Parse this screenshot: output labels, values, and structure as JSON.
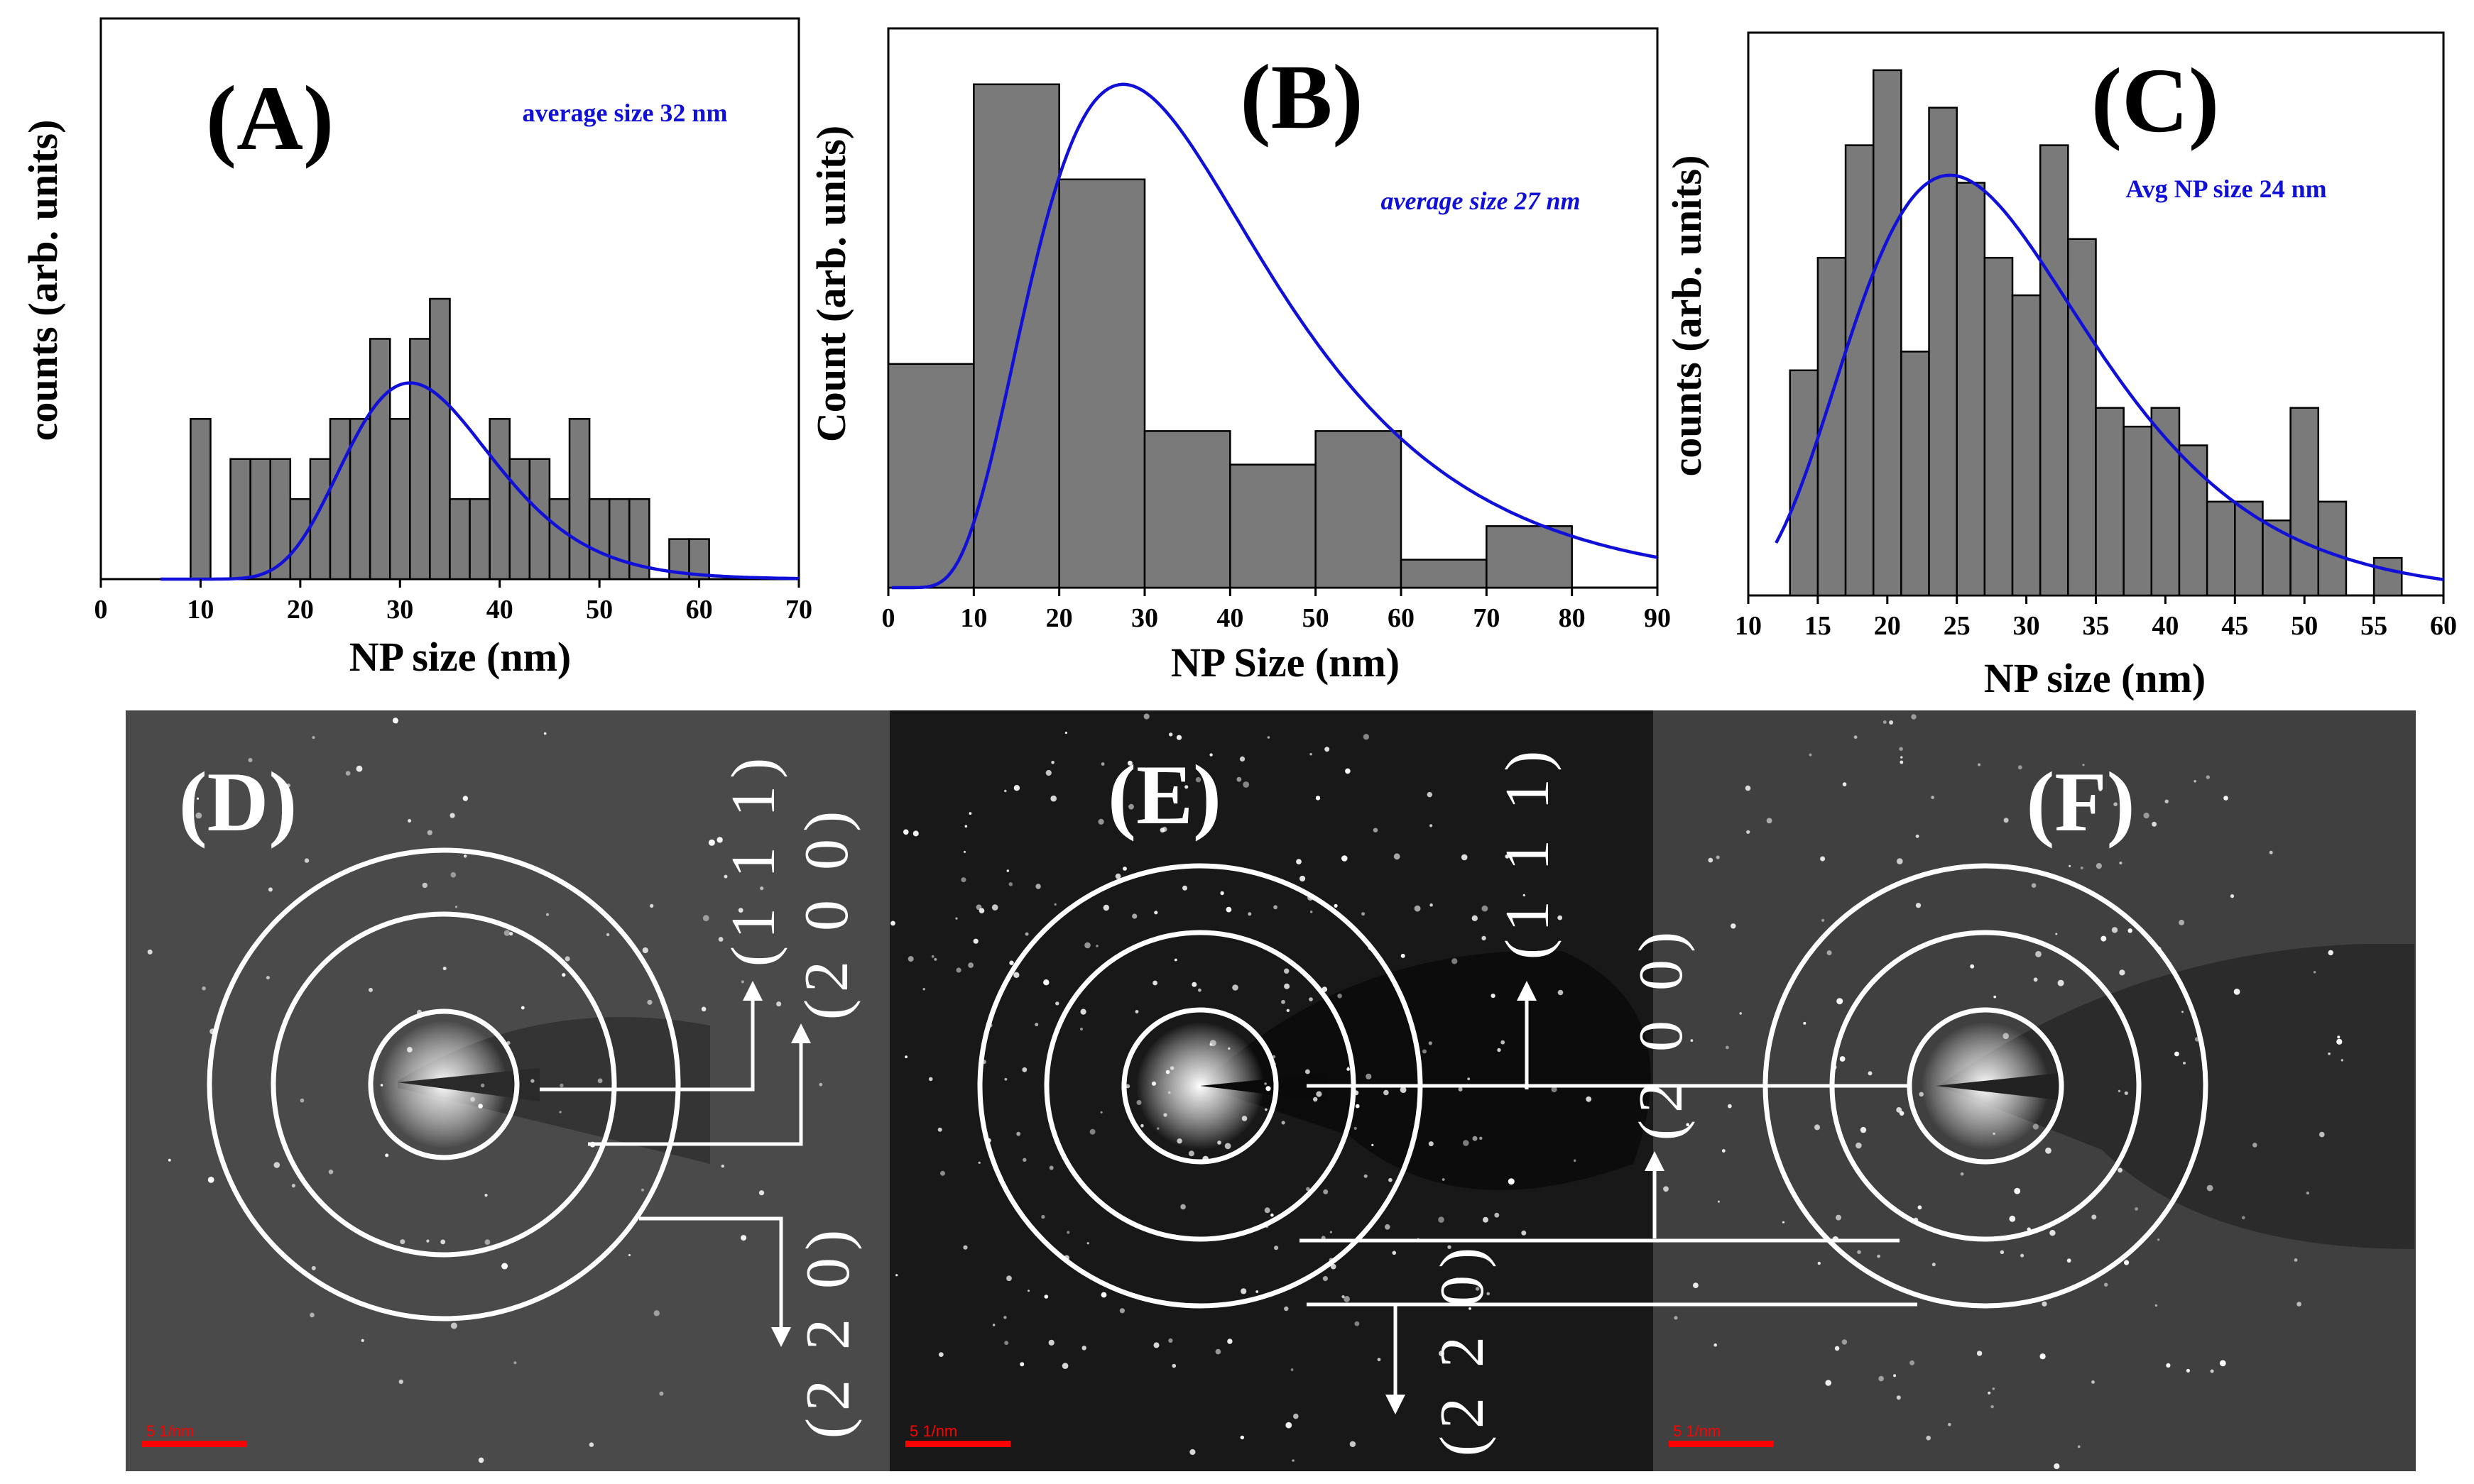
{
  "chart_data": [
    {
      "panel": "(A)",
      "type": "bar",
      "title": "(A)",
      "annotation": "average size 32 nm",
      "xlabel": "NP size (nm)",
      "ylabel": "counts (arb. units)",
      "xlim": [
        0,
        70
      ],
      "ylim": [
        0,
        14
      ],
      "xticks": [
        0,
        10,
        20,
        30,
        40,
        50,
        60,
        70
      ],
      "bin_width": 2,
      "bins": [
        {
          "x": 9,
          "value": 4
        },
        {
          "x": 13,
          "value": 3
        },
        {
          "x": 15,
          "value": 3
        },
        {
          "x": 17,
          "value": 3
        },
        {
          "x": 19,
          "value": 2
        },
        {
          "x": 21,
          "value": 3
        },
        {
          "x": 23,
          "value": 4
        },
        {
          "x": 25,
          "value": 4
        },
        {
          "x": 27,
          "value": 6
        },
        {
          "x": 29,
          "value": 4
        },
        {
          "x": 31,
          "value": 6
        },
        {
          "x": 33,
          "value": 7
        },
        {
          "x": 35,
          "value": 2
        },
        {
          "x": 37,
          "value": 2
        },
        {
          "x": 39,
          "value": 4
        },
        {
          "x": 41,
          "value": 3
        },
        {
          "x": 43,
          "value": 3
        },
        {
          "x": 45,
          "value": 2
        },
        {
          "x": 47,
          "value": 4
        },
        {
          "x": 49,
          "value": 2
        },
        {
          "x": 51,
          "value": 2
        },
        {
          "x": 53,
          "value": 2
        },
        {
          "x": 57,
          "value": 1
        },
        {
          "x": 59,
          "value": 1
        }
      ],
      "fit": {
        "type": "lognormal",
        "x_range": [
          6,
          70
        ],
        "peak_x": 31,
        "peak_value": 4.9,
        "sigma": 0.24
      }
    },
    {
      "panel": "(B)",
      "type": "bar",
      "title": "(B)",
      "annotation": "average size 27 nm",
      "xlabel": "NP Size (nm)",
      "ylabel": "Count (arb. units)",
      "xlim": [
        0,
        90
      ],
      "ylim": [
        0,
        10
      ],
      "xticks": [
        0,
        10,
        20,
        30,
        40,
        50,
        60,
        70,
        80,
        90
      ],
      "bin_width": 10,
      "bins": [
        {
          "x": 0,
          "value": 4
        },
        {
          "x": 10,
          "value": 9
        },
        {
          "x": 20,
          "value": 7.3
        },
        {
          "x": 30,
          "value": 2.8
        },
        {
          "x": 40,
          "value": 2.2
        },
        {
          "x": 50,
          "value": 2.8
        },
        {
          "x": 60,
          "value": 0.5
        },
        {
          "x": 70,
          "value": 1.1
        }
      ],
      "fit": {
        "type": "lognormal",
        "x_range": [
          0,
          90
        ],
        "peak_x": 27.5,
        "peak_value": 9.0,
        "sigma": 0.5
      }
    },
    {
      "panel": "(C)",
      "type": "bar",
      "title": "(C)",
      "annotation": "Avg NP size 24 nm",
      "xlabel": "NP size (nm)",
      "ylabel": "counts (arb. units)",
      "xlim": [
        10,
        60
      ],
      "ylim": [
        0,
        15
      ],
      "xticks": [
        10,
        15,
        20,
        25,
        30,
        35,
        40,
        45,
        50,
        55,
        60
      ],
      "bin_width": 2,
      "bins": [
        {
          "x": 13,
          "value": 6
        },
        {
          "x": 15,
          "value": 9
        },
        {
          "x": 17,
          "value": 12
        },
        {
          "x": 19,
          "value": 14
        },
        {
          "x": 21,
          "value": 6.5
        },
        {
          "x": 23,
          "value": 13
        },
        {
          "x": 25,
          "value": 11
        },
        {
          "x": 27,
          "value": 9
        },
        {
          "x": 29,
          "value": 8
        },
        {
          "x": 31,
          "value": 12
        },
        {
          "x": 33,
          "value": 9.5
        },
        {
          "x": 35,
          "value": 5
        },
        {
          "x": 37,
          "value": 4.5
        },
        {
          "x": 39,
          "value": 5
        },
        {
          "x": 41,
          "value": 4
        },
        {
          "x": 43,
          "value": 2.5
        },
        {
          "x": 45,
          "value": 2.5
        },
        {
          "x": 47,
          "value": 2
        },
        {
          "x": 49,
          "value": 5
        },
        {
          "x": 51,
          "value": 2.5
        },
        {
          "x": 55,
          "value": 1
        }
      ],
      "fit": {
        "type": "lognormal",
        "x_range": [
          12,
          60
        ],
        "peak_x": 24.5,
        "peak_value": 11.2,
        "sigma": 0.35
      }
    }
  ],
  "saed": {
    "panels": [
      {
        "label": "(D)",
        "scale_bar": "5 1/nm"
      },
      {
        "label": "(E)",
        "scale_bar": "5 1/nm"
      },
      {
        "label": "(F)",
        "scale_bar": "5 1/nm"
      }
    ],
    "miller_indices": {
      "d_111": "(1 1 1)",
      "d_200": "(2 0 0)",
      "d_220": "(2 2 0)",
      "e_111": "(1 1 1)",
      "e_200": "(2 0 0)",
      "e_220": "(2 2 0)"
    }
  }
}
